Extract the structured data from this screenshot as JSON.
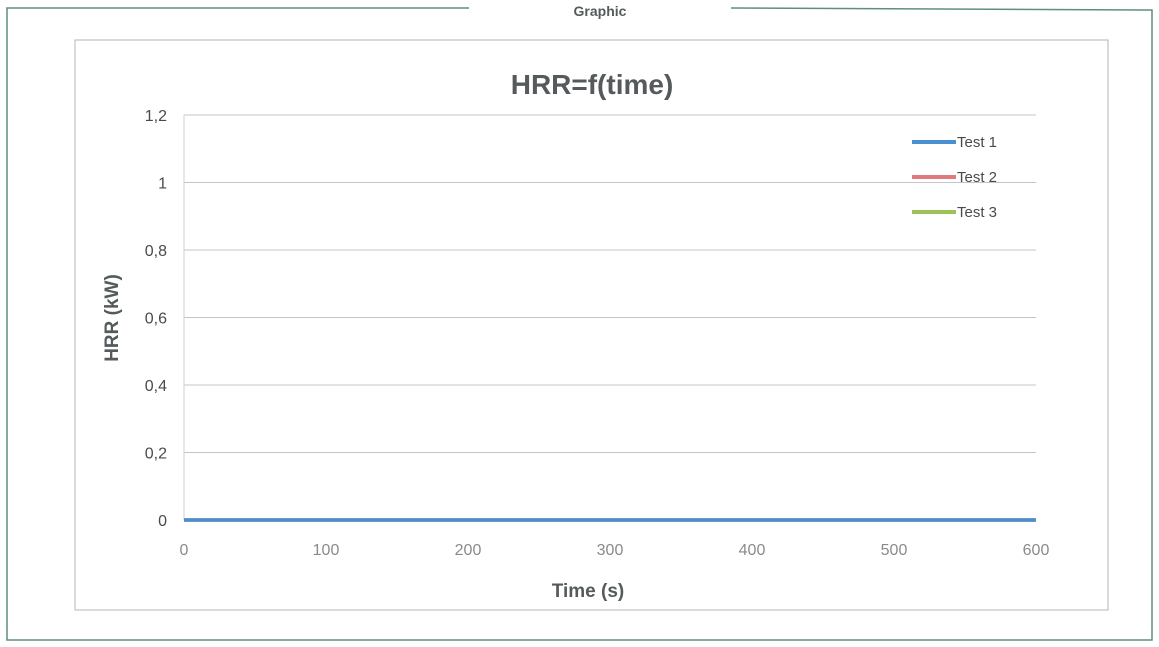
{
  "section_label": "Graphic",
  "chart_data": {
    "type": "line",
    "title": "HRR=f(time)",
    "xlabel": "Time (s)",
    "ylabel": "HRR (kW)",
    "xlim": [
      0,
      600
    ],
    "ylim": [
      0,
      1.2
    ],
    "xticks": [
      "0",
      "100",
      "200",
      "300",
      "400",
      "500",
      "600"
    ],
    "yticks": [
      "0",
      "0,2",
      "0,4",
      "0,6",
      "0,8",
      "1",
      "1,2"
    ],
    "grid": true,
    "legend_position": "top-right",
    "series": [
      {
        "name": "Test 1",
        "color": "#4a8fd0",
        "x": [
          0,
          600
        ],
        "y": [
          0,
          0
        ]
      },
      {
        "name": "Test 2",
        "color": "#e0787c",
        "x": [
          0,
          600
        ],
        "y": [
          0,
          0
        ]
      },
      {
        "name": "Test 3",
        "color": "#9ec25a",
        "x": [
          0,
          600
        ],
        "y": [
          0,
          0
        ]
      }
    ]
  }
}
